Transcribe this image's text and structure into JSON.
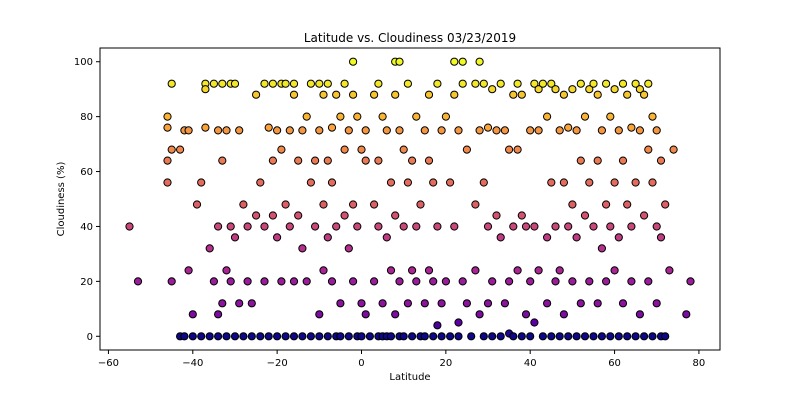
{
  "chart_data": {
    "type": "scatter",
    "title": "Latitude vs. Cloudiness 03/23/2019",
    "xlabel": "Latitude",
    "ylabel": "Cloudiness (%)",
    "xlim": [
      -62,
      85
    ],
    "ylim": [
      -5,
      105
    ],
    "xticks": [
      -60,
      -40,
      -20,
      0,
      20,
      40,
      60,
      80
    ],
    "yticks": [
      0,
      20,
      40,
      60,
      80,
      100
    ],
    "grid": false,
    "legend": "none",
    "colormap": [
      "#0d0887",
      "#6a00a8",
      "#b12a90",
      "#e16462",
      "#fca636",
      "#f0f921"
    ],
    "levels": [
      0,
      1,
      2,
      4,
      5,
      6,
      8,
      12,
      20,
      24,
      32,
      36,
      40,
      44,
      48,
      56,
      64,
      68,
      75,
      76,
      80,
      88,
      90,
      92,
      100
    ],
    "series": [
      {
        "points": [
          [
            -55,
            40
          ],
          [
            -53,
            20
          ],
          [
            -46,
            80
          ],
          [
            -46,
            76
          ],
          [
            -46,
            64
          ],
          [
            -46,
            56
          ],
          [
            -45,
            92
          ],
          [
            -45,
            68
          ],
          [
            -45,
            20
          ],
          [
            -43,
            0
          ],
          [
            -43,
            68
          ],
          [
            -42,
            75
          ],
          [
            -42,
            0
          ],
          [
            -41,
            24
          ],
          [
            -41,
            75
          ],
          [
            -40,
            0
          ],
          [
            -40,
            8
          ],
          [
            -39,
            48
          ],
          [
            -38,
            0
          ],
          [
            -38,
            56
          ],
          [
            -37,
            92
          ],
          [
            -37,
            90
          ],
          [
            -37,
            76
          ],
          [
            -36,
            32
          ],
          [
            -36,
            0
          ],
          [
            -35,
            92
          ],
          [
            -35,
            20
          ],
          [
            -34,
            75
          ],
          [
            -34,
            40
          ],
          [
            -34,
            8
          ],
          [
            -34,
            0
          ],
          [
            -33,
            92
          ],
          [
            -33,
            64
          ],
          [
            -33,
            12
          ],
          [
            -32,
            75
          ],
          [
            -32,
            24
          ],
          [
            -32,
            0
          ],
          [
            -31,
            92
          ],
          [
            -31,
            40
          ],
          [
            -31,
            20
          ],
          [
            -30,
            92
          ],
          [
            -30,
            36
          ],
          [
            -30,
            0
          ],
          [
            -29,
            75
          ],
          [
            -29,
            12
          ],
          [
            -28,
            48
          ],
          [
            -28,
            0
          ],
          [
            -27,
            40
          ],
          [
            -27,
            20
          ],
          [
            -26,
            12
          ],
          [
            -26,
            0
          ],
          [
            -25,
            88
          ],
          [
            -25,
            44
          ],
          [
            -24,
            56
          ],
          [
            -24,
            0
          ],
          [
            -23,
            92
          ],
          [
            -23,
            40
          ],
          [
            -23,
            20
          ],
          [
            -22,
            76
          ],
          [
            -22,
            0
          ],
          [
            -21,
            92
          ],
          [
            -21,
            64
          ],
          [
            -21,
            44
          ],
          [
            -20,
            75
          ],
          [
            -20,
            36
          ],
          [
            -20,
            0
          ],
          [
            -19,
            92
          ],
          [
            -19,
            68
          ],
          [
            -19,
            20
          ],
          [
            -18,
            92
          ],
          [
            -18,
            48
          ],
          [
            -18,
            0
          ],
          [
            -17,
            75
          ],
          [
            -17,
            40
          ],
          [
            -16,
            92
          ],
          [
            -16,
            88
          ],
          [
            -16,
            20
          ],
          [
            -16,
            0
          ],
          [
            -15,
            64
          ],
          [
            -15,
            44
          ],
          [
            -14,
            75
          ],
          [
            -14,
            32
          ],
          [
            -14,
            0
          ],
          [
            -13,
            80
          ],
          [
            -13,
            20
          ],
          [
            -12,
            92
          ],
          [
            -12,
            56
          ],
          [
            -12,
            0
          ],
          [
            -11,
            64
          ],
          [
            -11,
            40
          ],
          [
            -10,
            92
          ],
          [
            -10,
            75
          ],
          [
            -10,
            8
          ],
          [
            -10,
            0
          ],
          [
            -9,
            88
          ],
          [
            -9,
            48
          ],
          [
            -9,
            24
          ],
          [
            -8,
            92
          ],
          [
            -8,
            64
          ],
          [
            -8,
            36
          ],
          [
            -8,
            0
          ],
          [
            -7,
            76
          ],
          [
            -7,
            56
          ],
          [
            -7,
            20
          ],
          [
            -6,
            88
          ],
          [
            -6,
            40
          ],
          [
            -6,
            0
          ],
          [
            -5,
            80
          ],
          [
            -5,
            12
          ],
          [
            -5,
            0
          ],
          [
            -4,
            92
          ],
          [
            -4,
            68
          ],
          [
            -4,
            44
          ],
          [
            -3,
            75
          ],
          [
            -3,
            32
          ],
          [
            -3,
            0
          ],
          [
            -2,
            100
          ],
          [
            -2,
            88
          ],
          [
            -2,
            48
          ],
          [
            -2,
            20
          ],
          [
            -1,
            80
          ],
          [
            -1,
            40
          ],
          [
            -1,
            0
          ],
          [
            0,
            68
          ],
          [
            0,
            12
          ],
          [
            0,
            0
          ],
          [
            1,
            75
          ],
          [
            1,
            64
          ],
          [
            1,
            8
          ],
          [
            2,
            0
          ],
          [
            3,
            88
          ],
          [
            3,
            48
          ],
          [
            3,
            20
          ],
          [
            4,
            92
          ],
          [
            4,
            64
          ],
          [
            4,
            40
          ],
          [
            4,
            0
          ],
          [
            5,
            80
          ],
          [
            5,
            12
          ],
          [
            5,
            0
          ],
          [
            6,
            75
          ],
          [
            6,
            36
          ],
          [
            6,
            0
          ],
          [
            7,
            56
          ],
          [
            7,
            24
          ],
          [
            7,
            0
          ],
          [
            8,
            100
          ],
          [
            8,
            88
          ],
          [
            8,
            44
          ],
          [
            8,
            8
          ],
          [
            9,
            100
          ],
          [
            9,
            75
          ],
          [
            9,
            20
          ],
          [
            9,
            0
          ],
          [
            10,
            68
          ],
          [
            10,
            40
          ],
          [
            10,
            0
          ],
          [
            11,
            92
          ],
          [
            11,
            56
          ],
          [
            11,
            12
          ],
          [
            12,
            64
          ],
          [
            12,
            24
          ],
          [
            12,
            0
          ],
          [
            13,
            80
          ],
          [
            13,
            40
          ],
          [
            13,
            20
          ],
          [
            14,
            48
          ],
          [
            14,
            0
          ],
          [
            15,
            75
          ],
          [
            15,
            12
          ],
          [
            15,
            0
          ],
          [
            16,
            88
          ],
          [
            16,
            64
          ],
          [
            16,
            24
          ],
          [
            17,
            56
          ],
          [
            17,
            20
          ],
          [
            17,
            0
          ],
          [
            18,
            92
          ],
          [
            18,
            40
          ],
          [
            18,
            4
          ],
          [
            19,
            75
          ],
          [
            19,
            12
          ],
          [
            19,
            0
          ],
          [
            20,
            80
          ],
          [
            20,
            20
          ],
          [
            21,
            56
          ],
          [
            21,
            0
          ],
          [
            22,
            100
          ],
          [
            22,
            88
          ],
          [
            22,
            40
          ],
          [
            23,
            75
          ],
          [
            23,
            5
          ],
          [
            23,
            0
          ],
          [
            24,
            100
          ],
          [
            24,
            92
          ],
          [
            24,
            20
          ],
          [
            25,
            68
          ],
          [
            25,
            12
          ],
          [
            26,
            0
          ],
          [
            27,
            92
          ],
          [
            27,
            48
          ],
          [
            27,
            24
          ],
          [
            28,
            100
          ],
          [
            28,
            75
          ],
          [
            28,
            8
          ],
          [
            29,
            92
          ],
          [
            29,
            56
          ],
          [
            29,
            0
          ],
          [
            30,
            76
          ],
          [
            30,
            40
          ],
          [
            30,
            12
          ],
          [
            31,
            90
          ],
          [
            31,
            20
          ],
          [
            31,
            0
          ],
          [
            32,
            75
          ],
          [
            32,
            44
          ],
          [
            33,
            92
          ],
          [
            33,
            36
          ],
          [
            33,
            0
          ],
          [
            34,
            75
          ],
          [
            34,
            12
          ],
          [
            35,
            68
          ],
          [
            35,
            20
          ],
          [
            35,
            1
          ],
          [
            36,
            88
          ],
          [
            36,
            40
          ],
          [
            36,
            0
          ],
          [
            37,
            92
          ],
          [
            37,
            68
          ],
          [
            37,
            24
          ],
          [
            38,
            88
          ],
          [
            38,
            44
          ],
          [
            38,
            0
          ],
          [
            39,
            40
          ],
          [
            39,
            8
          ],
          [
            40,
            75
          ],
          [
            40,
            20
          ],
          [
            40,
            0
          ],
          [
            41,
            92
          ],
          [
            41,
            40
          ],
          [
            41,
            5
          ],
          [
            42,
            90
          ],
          [
            42,
            75
          ],
          [
            42,
            24
          ],
          [
            43,
            92
          ],
          [
            43,
            0
          ],
          [
            44,
            80
          ],
          [
            44,
            36
          ],
          [
            44,
            12
          ],
          [
            45,
            92
          ],
          [
            45,
            56
          ],
          [
            45,
            0
          ],
          [
            46,
            90
          ],
          [
            46,
            40
          ],
          [
            46,
            20
          ],
          [
            47,
            75
          ],
          [
            47,
            24
          ],
          [
            47,
            0
          ],
          [
            48,
            88
          ],
          [
            48,
            56
          ],
          [
            48,
            8
          ],
          [
            49,
            76
          ],
          [
            49,
            40
          ],
          [
            49,
            0
          ],
          [
            50,
            90
          ],
          [
            50,
            48
          ],
          [
            50,
            20
          ],
          [
            51,
            75
          ],
          [
            51,
            36
          ],
          [
            51,
            0
          ],
          [
            52,
            92
          ],
          [
            52,
            64
          ],
          [
            52,
            12
          ],
          [
            53,
            80
          ],
          [
            53,
            44
          ],
          [
            53,
            0
          ],
          [
            54,
            90
          ],
          [
            54,
            56
          ],
          [
            54,
            20
          ],
          [
            55,
            92
          ],
          [
            55,
            40
          ],
          [
            55,
            0
          ],
          [
            56,
            88
          ],
          [
            56,
            64
          ],
          [
            56,
            12
          ],
          [
            57,
            75
          ],
          [
            57,
            32
          ],
          [
            57,
            0
          ],
          [
            58,
            92
          ],
          [
            58,
            48
          ],
          [
            58,
            20
          ],
          [
            59,
            80
          ],
          [
            59,
            40
          ],
          [
            59,
            0
          ],
          [
            60,
            90
          ],
          [
            60,
            56
          ],
          [
            60,
            24
          ],
          [
            61,
            75
          ],
          [
            61,
            36
          ],
          [
            61,
            0
          ],
          [
            62,
            92
          ],
          [
            62,
            64
          ],
          [
            62,
            12
          ],
          [
            63,
            88
          ],
          [
            63,
            48
          ],
          [
            63,
            0
          ],
          [
            64,
            76
          ],
          [
            64,
            40
          ],
          [
            64,
            20
          ],
          [
            65,
            92
          ],
          [
            65,
            56
          ],
          [
            65,
            0
          ],
          [
            66,
            90
          ],
          [
            66,
            75
          ],
          [
            66,
            8
          ],
          [
            67,
            88
          ],
          [
            67,
            44
          ],
          [
            67,
            0
          ],
          [
            68,
            92
          ],
          [
            68,
            68
          ],
          [
            68,
            20
          ],
          [
            69,
            80
          ],
          [
            69,
            56
          ],
          [
            69,
            0
          ],
          [
            70,
            75
          ],
          [
            70,
            40
          ],
          [
            70,
            12
          ],
          [
            71,
            64
          ],
          [
            71,
            36
          ],
          [
            71,
            0
          ],
          [
            72,
            48
          ],
          [
            72,
            0
          ],
          [
            73,
            24
          ],
          [
            74,
            68
          ],
          [
            77,
            8
          ],
          [
            78,
            20
          ]
        ]
      }
    ]
  }
}
